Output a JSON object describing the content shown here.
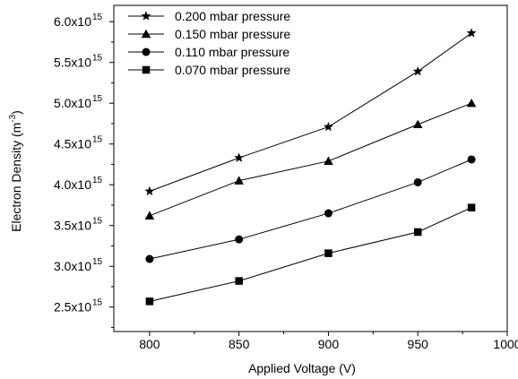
{
  "chart_data": {
    "type": "line",
    "xlabel": "Applied Voltage (V)",
    "ylabel": {
      "base": "Electron Density (m",
      "sup": "-3",
      "end": ")"
    },
    "xlim": [
      780,
      1000
    ],
    "ylim": [
      2.2,
      6.2
    ],
    "y_exponent": "15",
    "x_ticks": [
      800,
      850,
      900,
      950,
      1000
    ],
    "y_ticks": [
      2.5,
      3.0,
      3.5,
      4.0,
      4.5,
      5.0,
      5.5,
      6.0
    ],
    "y_tick_labels": [
      "2.5x10",
      "3.0x10",
      "3.5x10",
      "4.0x10",
      "4.5x10",
      "5.0x10",
      "5.5x10",
      "6.0x10"
    ],
    "x": [
      800,
      850,
      900,
      950,
      980
    ],
    "legend_position": "top-left",
    "series": [
      {
        "name": "0.200 mbar pressure",
        "marker": "star",
        "values": [
          3.92,
          4.33,
          4.71,
          5.39,
          5.86
        ]
      },
      {
        "name": "0.150 mbar pressure",
        "marker": "triangle",
        "values": [
          3.62,
          4.05,
          4.29,
          4.74,
          5.0
        ]
      },
      {
        "name": "0.110 mbar pressure",
        "marker": "circle",
        "values": [
          3.09,
          3.33,
          3.65,
          4.03,
          4.31
        ]
      },
      {
        "name": "0.070 mbar pressure",
        "marker": "square",
        "values": [
          2.57,
          2.82,
          3.16,
          3.42,
          3.72
        ]
      }
    ]
  }
}
